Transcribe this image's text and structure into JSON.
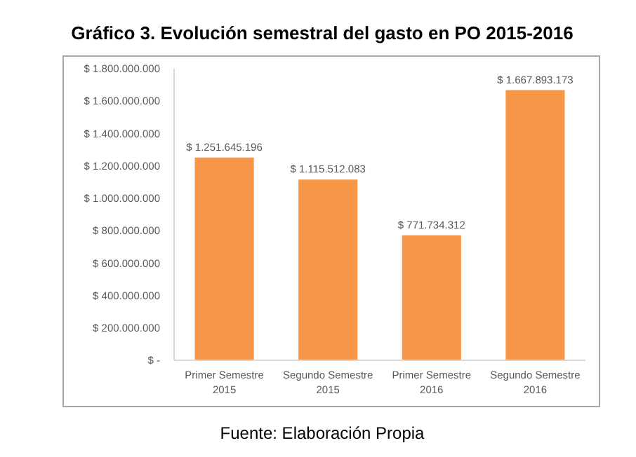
{
  "chart_data": {
    "type": "bar",
    "title": "Gráfico 3. Evolución semestral del gasto en PO 2015-2016",
    "categories": [
      "Primer Semestre 2015",
      "Segundo Semestre 2015",
      "Primer Semestre 2016",
      "Segundo Semestre 2016"
    ],
    "values": [
      1251645196,
      1115512083,
      771734312,
      1667893173
    ],
    "value_labels": [
      "$ 1.251.645.196",
      "$ 1.115.512.083",
      "$ 771.734.312",
      "$ 1.667.893.173"
    ],
    "color": "#f79646",
    "ylim": [
      0,
      1800000000
    ],
    "yticks": [
      {
        "value": 0,
        "label": "$ -"
      },
      {
        "value": 200000000,
        "label": "$ 200.000.000"
      },
      {
        "value": 400000000,
        "label": "$ 400.000.000"
      },
      {
        "value": 600000000,
        "label": "$ 600.000.000"
      },
      {
        "value": 800000000,
        "label": "$ 800.000.000"
      },
      {
        "value": 1000000000,
        "label": "$ 1.000.000.000"
      },
      {
        "value": 1200000000,
        "label": "$ 1.200.000.000"
      },
      {
        "value": 1400000000,
        "label": "$ 1.400.000.000"
      },
      {
        "value": 1600000000,
        "label": "$ 1.600.000.000"
      },
      {
        "value": 1800000000,
        "label": "$ 1.800.000.000"
      }
    ],
    "grid": false,
    "annotations": [
      "Fuente: Elaboración Propia"
    ]
  }
}
